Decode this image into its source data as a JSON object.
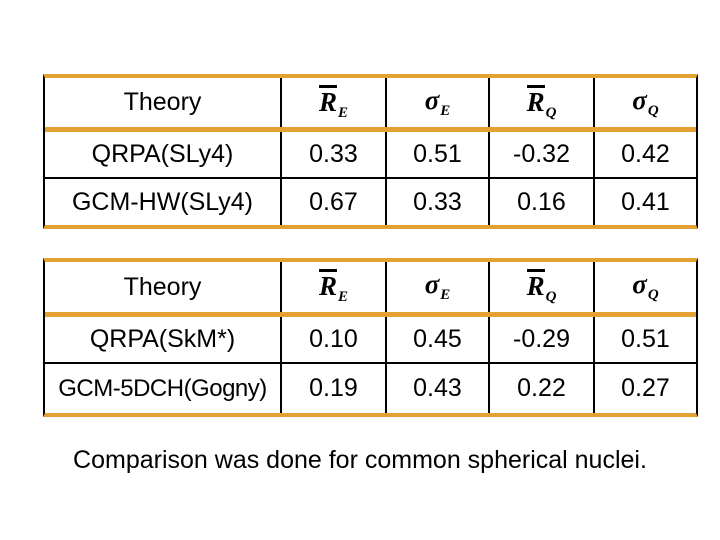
{
  "page": {
    "background": "#ffffff",
    "accent_border_color": "#E3A134",
    "grid_line_color": "#000000",
    "text_color": "#000000"
  },
  "tables": [
    {
      "header": {
        "theory_label": "Theory",
        "columns": [
          {
            "symbol": "R",
            "subscript": "E",
            "overline": true,
            "meaning": "mean-R-E"
          },
          {
            "symbol": "σ",
            "subscript": "E",
            "overline": false,
            "meaning": "sigma-E"
          },
          {
            "symbol": "R",
            "subscript": "Q",
            "overline": true,
            "meaning": "mean-R-Q"
          },
          {
            "symbol": "σ",
            "subscript": "Q",
            "overline": false,
            "meaning": "sigma-Q"
          }
        ]
      },
      "rows": [
        {
          "theory": "QRPA(SLy4)",
          "values": [
            "0.33",
            "0.51",
            "-0.32",
            "0.42"
          ]
        },
        {
          "theory": "GCM-HW(SLy4)",
          "values": [
            "0.67",
            "0.33",
            "0.16",
            "0.41"
          ]
        }
      ]
    },
    {
      "header": {
        "theory_label": "Theory",
        "columns": [
          {
            "symbol": "R",
            "subscript": "E",
            "overline": true,
            "meaning": "mean-R-E"
          },
          {
            "symbol": "σ",
            "subscript": "E",
            "overline": false,
            "meaning": "sigma-E"
          },
          {
            "symbol": "R",
            "subscript": "Q",
            "overline": true,
            "meaning": "mean-R-Q"
          },
          {
            "symbol": "σ",
            "subscript": "Q",
            "overline": false,
            "meaning": "sigma-Q"
          }
        ]
      },
      "rows": [
        {
          "theory": "QRPA(SkM*)",
          "values": [
            "0.10",
            "0.45",
            "-0.29",
            "0.51"
          ]
        },
        {
          "theory": "GCM-5DCH(Gogny)",
          "values": [
            "0.19",
            "0.43",
            "0.22",
            "0.27"
          ]
        }
      ]
    }
  ],
  "caption": "Comparison was done for common spherical nuclei."
}
